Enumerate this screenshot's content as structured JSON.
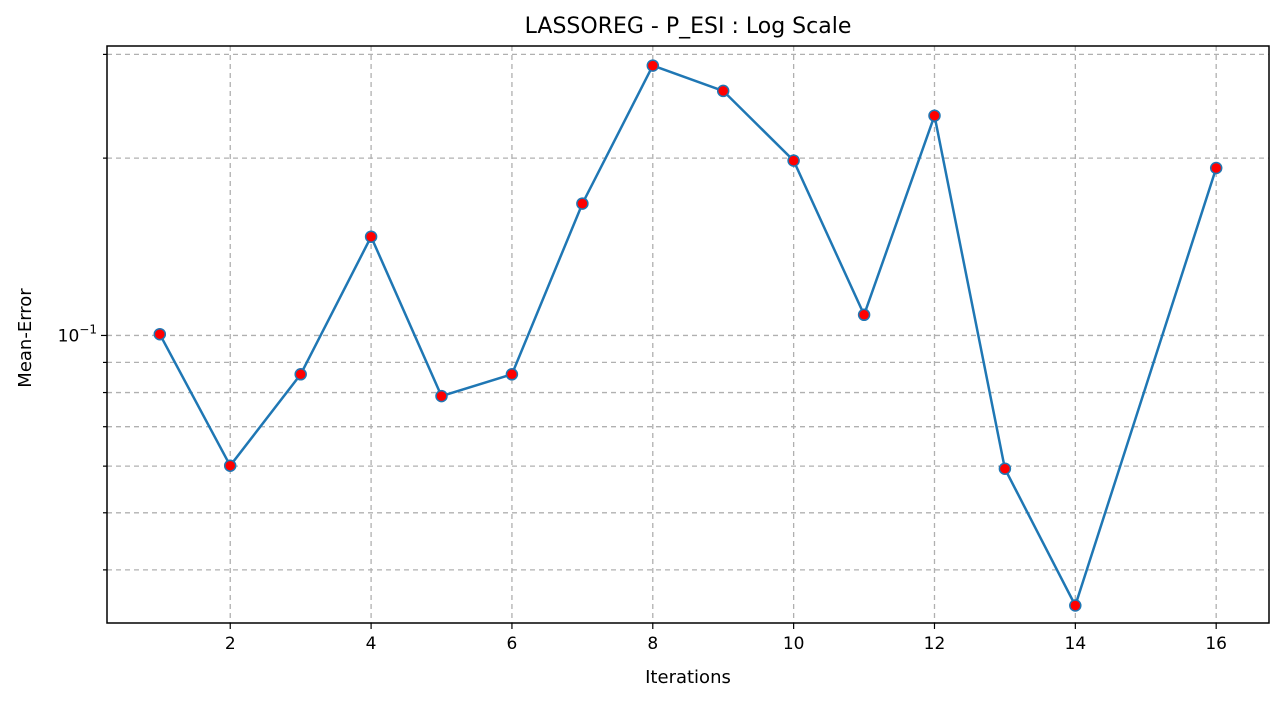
{
  "chart_data": {
    "type": "line",
    "title": "LASSOREG - P_ESI : Log Scale",
    "xlabel": "Iterations",
    "ylabel": "Mean-Error",
    "yscale": "log",
    "grid": true,
    "x": [
      1,
      2,
      3,
      4,
      5,
      6,
      7,
      8,
      9,
      10,
      11,
      12,
      13,
      14,
      16
    ],
    "series": [
      {
        "values": [
          0.1005,
          0.0601,
          0.0859,
          0.1471,
          0.0789,
          0.0859,
          0.1674,
          0.2871,
          0.2601,
          0.1981,
          0.1084,
          0.2361,
          0.0594,
          0.0348,
          0.1924
        ],
        "line_color": "#1f77b4",
        "marker_color": "#ff0000"
      }
    ],
    "xlim": [
      0.25,
      16.75
    ],
    "ylim": [
      0.0325,
      0.31
    ],
    "xticks": [
      2,
      4,
      6,
      8,
      10,
      12,
      14,
      16
    ],
    "xtick_labels": [
      "2",
      "4",
      "6",
      "8",
      "10",
      "12",
      "14",
      "16"
    ],
    "yticks_major": [
      0.1
    ],
    "ytick_major_labels": [
      "10^-1"
    ],
    "yticks_minor": [
      0.04,
      0.05,
      0.06,
      0.07,
      0.08,
      0.09,
      0.2,
      0.3
    ]
  }
}
